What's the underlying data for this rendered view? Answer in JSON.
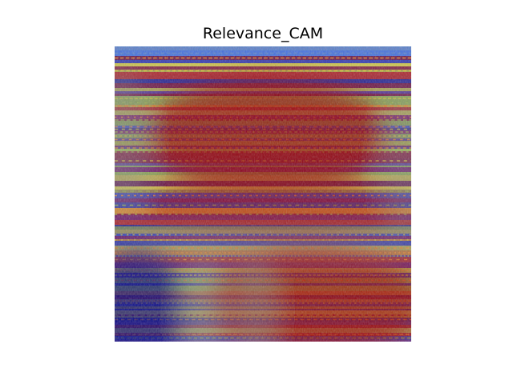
{
  "figure": {
    "title": "Relevance_CAM"
  },
  "heatmap": {
    "description_colors": {
      "hot": "#9a0000",
      "cold": "#00007a",
      "neutral": "#8a8a8a"
    },
    "overlay_palette": [
      "#1a2a9a",
      "#4a6ad8",
      "#9ab84a",
      "#d8c43a",
      "#f08a2a",
      "#c81a1a",
      "#8a0a0a"
    ]
  }
}
